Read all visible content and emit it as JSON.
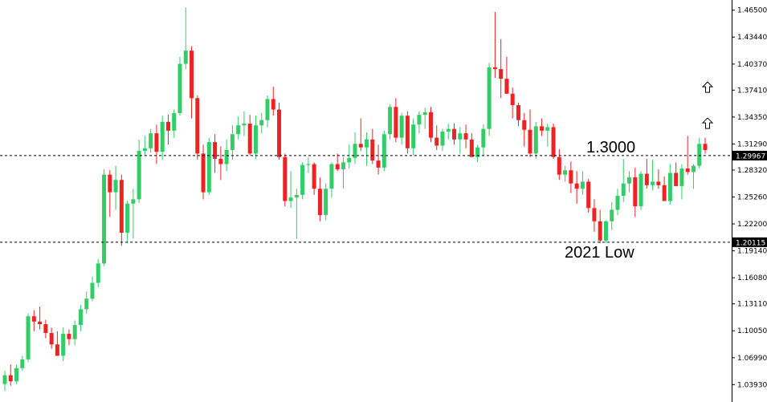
{
  "chart_data": {
    "type": "candlestick",
    "title": "",
    "up_color": "#33cc66",
    "down_color": "#ee2222",
    "y_min": 1.025,
    "y_max": 1.472,
    "y_ticks": [
      1.465,
      1.4344,
      1.4037,
      1.3741,
      1.3435,
      1.3129,
      1.2832,
      1.2526,
      1.222,
      1.1914,
      1.1608,
      1.1311,
      1.1005,
      1.0699,
      1.0393
    ],
    "y_tick_labels": [
      "1.46500",
      "1.43440",
      "1.40370",
      "1.37410",
      "1.34350",
      "1.31290",
      "1.28320",
      "1.25260",
      "1.22200",
      "1.19140",
      "1.16080",
      "1.13110",
      "1.10050",
      "1.06990",
      "1.03930"
    ],
    "candles": [
      [
        1.04,
        1.055,
        1.032,
        1.05
      ],
      [
        1.05,
        1.062,
        1.038,
        1.043
      ],
      [
        1.043,
        1.062,
        1.04,
        1.058
      ],
      [
        1.058,
        1.072,
        1.055,
        1.068
      ],
      [
        1.068,
        1.12,
        1.065,
        1.117
      ],
      [
        1.117,
        1.124,
        1.1,
        1.111
      ],
      [
        1.111,
        1.128,
        1.102,
        1.108
      ],
      [
        1.108,
        1.113,
        1.092,
        1.098
      ],
      [
        1.098,
        1.104,
        1.08,
        1.085
      ],
      [
        1.085,
        1.1,
        1.072,
        1.072
      ],
      [
        1.072,
        1.104,
        1.066,
        1.097
      ],
      [
        1.097,
        1.102,
        1.084,
        1.091
      ],
      [
        1.091,
        1.112,
        1.084,
        1.107
      ],
      [
        1.107,
        1.13,
        1.1,
        1.125
      ],
      [
        1.125,
        1.145,
        1.12,
        1.137
      ],
      [
        1.137,
        1.162,
        1.134,
        1.155
      ],
      [
        1.155,
        1.182,
        1.15,
        1.177
      ],
      [
        1.177,
        1.284,
        1.174,
        1.278
      ],
      [
        1.278,
        1.283,
        1.23,
        1.258
      ],
      [
        1.258,
        1.288,
        1.238,
        1.272
      ],
      [
        1.272,
        1.278,
        1.197,
        1.212
      ],
      [
        1.212,
        1.248,
        1.2,
        1.245
      ],
      [
        1.245,
        1.262,
        1.205,
        1.25
      ],
      [
        1.25,
        1.318,
        1.246,
        1.305
      ],
      [
        1.305,
        1.322,
        1.3,
        1.308
      ],
      [
        1.308,
        1.33,
        1.303,
        1.325
      ],
      [
        1.325,
        1.335,
        1.29,
        1.304
      ],
      [
        1.304,
        1.345,
        1.295,
        1.338
      ],
      [
        1.338,
        1.346,
        1.312,
        1.328
      ],
      [
        1.328,
        1.352,
        1.32,
        1.348
      ],
      [
        1.348,
        1.412,
        1.345,
        1.404
      ],
      [
        1.404,
        1.468,
        1.398,
        1.419
      ],
      [
        1.419,
        1.424,
        1.342,
        1.365
      ],
      [
        1.365,
        1.368,
        1.295,
        1.302
      ],
      [
        1.302,
        1.312,
        1.25,
        1.258
      ],
      [
        1.258,
        1.32,
        1.255,
        1.315
      ],
      [
        1.315,
        1.324,
        1.28,
        1.296
      ],
      [
        1.296,
        1.31,
        1.272,
        1.29
      ],
      [
        1.29,
        1.318,
        1.282,
        1.306
      ],
      [
        1.306,
        1.334,
        1.295,
        1.324
      ],
      [
        1.324,
        1.344,
        1.318,
        1.334
      ],
      [
        1.334,
        1.35,
        1.322,
        1.336
      ],
      [
        1.336,
        1.346,
        1.3,
        1.302
      ],
      [
        1.302,
        1.345,
        1.296,
        1.334
      ],
      [
        1.334,
        1.348,
        1.325,
        1.34
      ],
      [
        1.34,
        1.368,
        1.332,
        1.364
      ],
      [
        1.364,
        1.378,
        1.345,
        1.352
      ],
      [
        1.352,
        1.36,
        1.295,
        1.298
      ],
      [
        1.298,
        1.302,
        1.242,
        1.248
      ],
      [
        1.248,
        1.282,
        1.24,
        1.252
      ],
      [
        1.252,
        1.262,
        1.205,
        1.255
      ],
      [
        1.255,
        1.292,
        1.25,
        1.289
      ],
      [
        1.289,
        1.298,
        1.28,
        1.29
      ],
      [
        1.29,
        1.292,
        1.255,
        1.262
      ],
      [
        1.262,
        1.275,
        1.225,
        1.232
      ],
      [
        1.232,
        1.268,
        1.226,
        1.262
      ],
      [
        1.262,
        1.292,
        1.252,
        1.29
      ],
      [
        1.29,
        1.302,
        1.282,
        1.284
      ],
      [
        1.284,
        1.298,
        1.262,
        1.292
      ],
      [
        1.292,
        1.312,
        1.285,
        1.297
      ],
      [
        1.297,
        1.326,
        1.29,
        1.313
      ],
      [
        1.313,
        1.342,
        1.305,
        1.309
      ],
      [
        1.309,
        1.326,
        1.288,
        1.318
      ],
      [
        1.318,
        1.33,
        1.29,
        1.294
      ],
      [
        1.294,
        1.312,
        1.278,
        1.286
      ],
      [
        1.286,
        1.328,
        1.282,
        1.324
      ],
      [
        1.324,
        1.358,
        1.318,
        1.355
      ],
      [
        1.355,
        1.365,
        1.315,
        1.32
      ],
      [
        1.32,
        1.348,
        1.312,
        1.345
      ],
      [
        1.345,
        1.35,
        1.302,
        1.308
      ],
      [
        1.308,
        1.342,
        1.3,
        1.335
      ],
      [
        1.335,
        1.35,
        1.325,
        1.346
      ],
      [
        1.346,
        1.354,
        1.33,
        1.349
      ],
      [
        1.349,
        1.355,
        1.315,
        1.32
      ],
      [
        1.32,
        1.334,
        1.306,
        1.311
      ],
      [
        1.311,
        1.33,
        1.305,
        1.327
      ],
      [
        1.327,
        1.336,
        1.318,
        1.33
      ],
      [
        1.33,
        1.336,
        1.312,
        1.318
      ],
      [
        1.318,
        1.332,
        1.302,
        1.325
      ],
      [
        1.325,
        1.335,
        1.308,
        1.318
      ],
      [
        1.318,
        1.325,
        1.3,
        1.298
      ],
      [
        1.298,
        1.312,
        1.292,
        1.309
      ],
      [
        1.309,
        1.335,
        1.3,
        1.33
      ],
      [
        1.33,
        1.405,
        1.322,
        1.4
      ],
      [
        1.4,
        1.463,
        1.388,
        1.398
      ],
      [
        1.398,
        1.432,
        1.365,
        1.387
      ],
      [
        1.387,
        1.412,
        1.37,
        1.37
      ],
      [
        1.37,
        1.377,
        1.342,
        1.357
      ],
      [
        1.357,
        1.36,
        1.333,
        1.34
      ],
      [
        1.34,
        1.348,
        1.31,
        1.329
      ],
      [
        1.329,
        1.352,
        1.298,
        1.302
      ],
      [
        1.302,
        1.338,
        1.296,
        1.333
      ],
      [
        1.333,
        1.342,
        1.322,
        1.328
      ],
      [
        1.328,
        1.336,
        1.31,
        1.332
      ],
      [
        1.332,
        1.336,
        1.296,
        1.298
      ],
      [
        1.298,
        1.307,
        1.272,
        1.278
      ],
      [
        1.278,
        1.288,
        1.27,
        1.283
      ],
      [
        1.283,
        1.293,
        1.257,
        1.268
      ],
      [
        1.268,
        1.282,
        1.245,
        1.262
      ],
      [
        1.262,
        1.282,
        1.255,
        1.27
      ],
      [
        1.27,
        1.273,
        1.235,
        1.24
      ],
      [
        1.24,
        1.25,
        1.213,
        1.225
      ],
      [
        1.225,
        1.238,
        1.2,
        1.203
      ],
      [
        1.203,
        1.226,
        1.2,
        1.225
      ],
      [
        1.225,
        1.247,
        1.215,
        1.238
      ],
      [
        1.238,
        1.262,
        1.232,
        1.254
      ],
      [
        1.254,
        1.296,
        1.247,
        1.268
      ],
      [
        1.268,
        1.282,
        1.258,
        1.275
      ],
      [
        1.275,
        1.286,
        1.23,
        1.242
      ],
      [
        1.242,
        1.282,
        1.238,
        1.279
      ],
      [
        1.279,
        1.296,
        1.262,
        1.266
      ],
      [
        1.266,
        1.295,
        1.26,
        1.27
      ],
      [
        1.27,
        1.284,
        1.262,
        1.266
      ],
      [
        1.266,
        1.276,
        1.248,
        1.248
      ],
      [
        1.248,
        1.29,
        1.244,
        1.28
      ],
      [
        1.28,
        1.292,
        1.265,
        1.265
      ],
      [
        1.265,
        1.29,
        1.25,
        1.285
      ],
      [
        1.285,
        1.322,
        1.278,
        1.281
      ],
      [
        1.281,
        1.29,
        1.262,
        1.288
      ],
      [
        1.288,
        1.32,
        1.285,
        1.313
      ],
      [
        1.313,
        1.32,
        1.302,
        1.306
      ]
    ],
    "hlines": [
      {
        "value": 1.29967,
        "label": "1.3000",
        "axis_label": "1.29967"
      },
      {
        "value": 1.20115,
        "label": "2021 Low",
        "axis_label": "1.20115"
      }
    ],
    "arrow_marks": [
      1.377,
      1.336
    ]
  }
}
